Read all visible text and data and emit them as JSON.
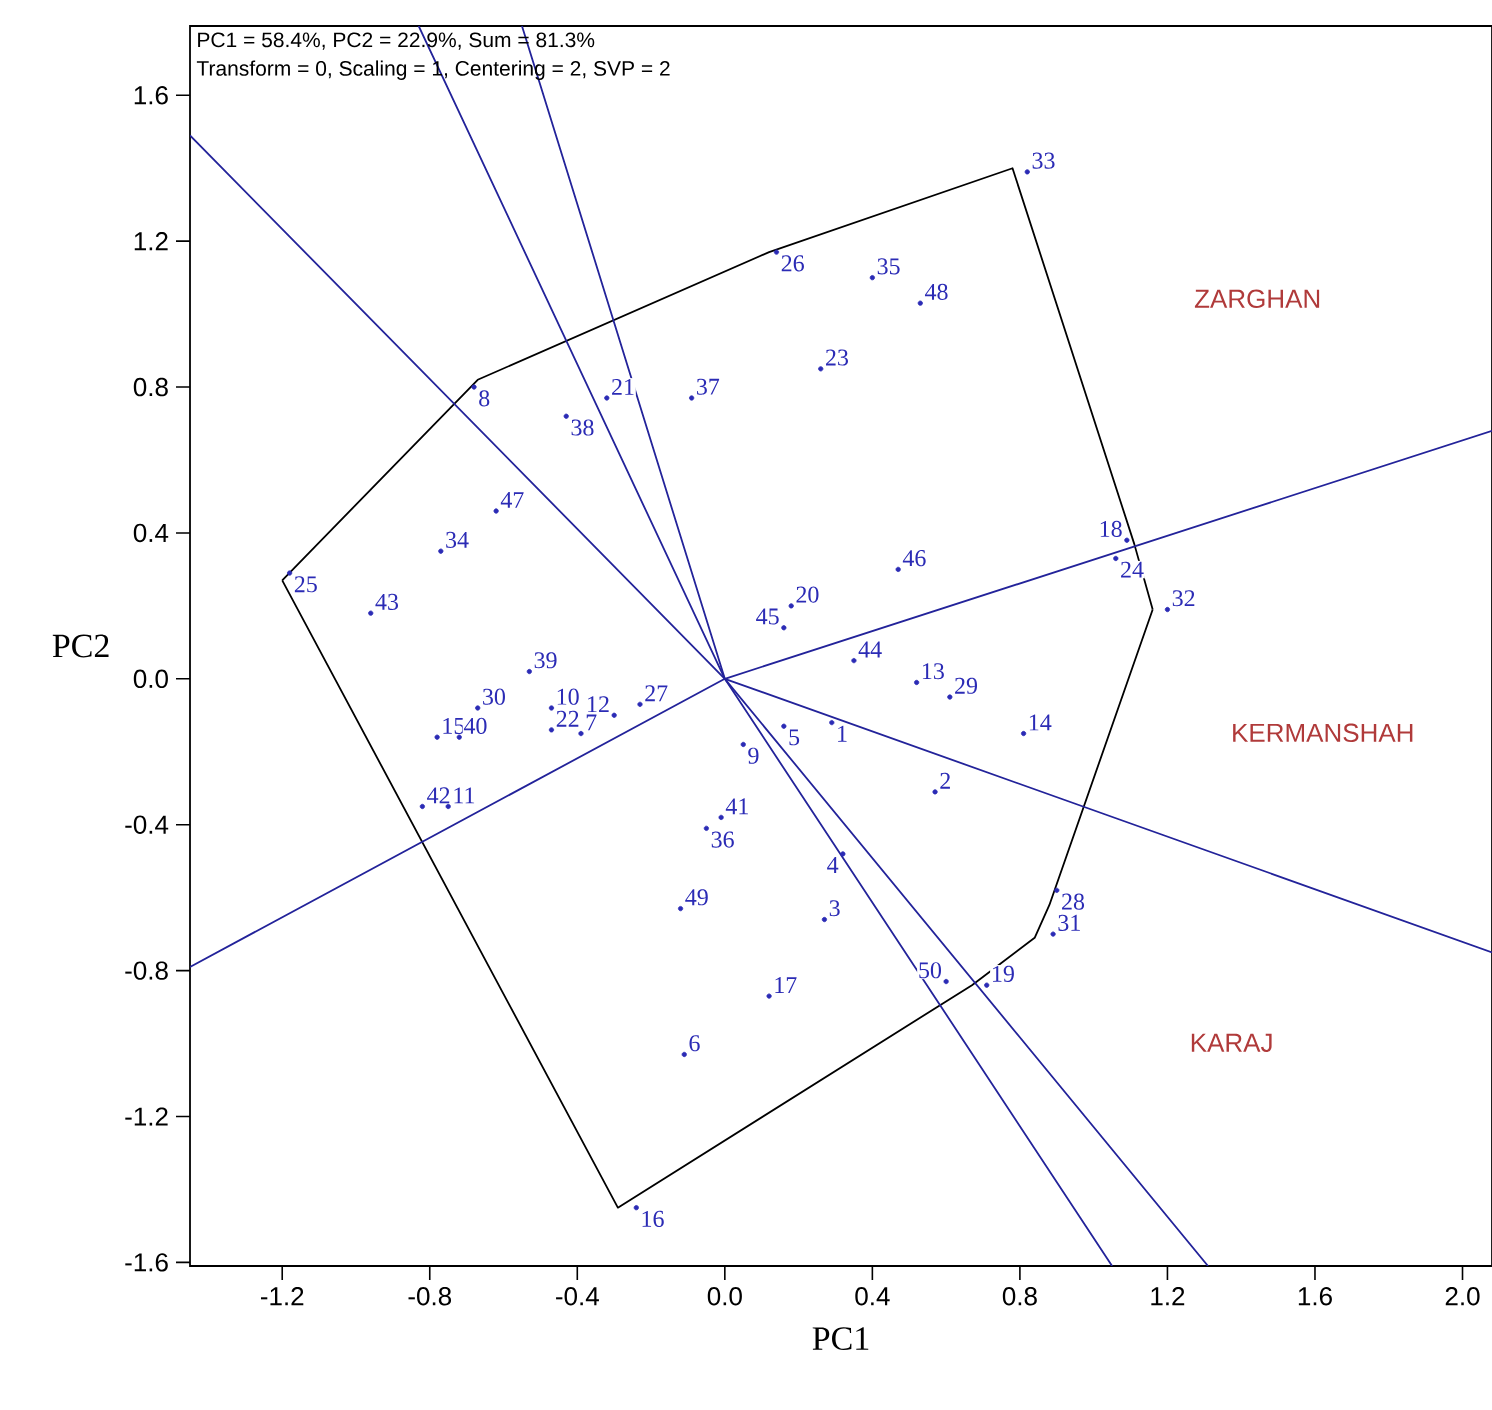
{
  "chart_data": {
    "type": "scatter",
    "marker": "circle",
    "xlabel": "PC1",
    "ylabel": "PC2",
    "xlim": [
      -1.45,
      2.08
    ],
    "ylim": [
      -1.61,
      1.79
    ],
    "xticks": [
      -1.2,
      -0.8,
      -0.4,
      {
        "value": 0,
        "label": "0.0"
      },
      0.4,
      0.8,
      1.2,
      1.6,
      {
        "value": 2,
        "label": "2.0"
      }
    ],
    "yticks": [
      -1.6,
      -1.2,
      -0.8,
      -0.4,
      {
        "value": 0,
        "label": "0.0"
      },
      0.4,
      0.8,
      1.2,
      1.6
    ],
    "grid": false,
    "annotations": [
      "PC1 = 58.4%, PC2 = 22.9%, Sum = 81.3%",
      "Transform = 0, Scaling = 1, Centering = 2, SVP = 2",
      "ZARGHAN",
      "KERMANSHAH",
      "KARAJ"
    ],
    "series": [
      {
        "name": "1",
        "color": "#2b2bb5",
        "x": [
          0.29
        ],
        "values": [
          -0.12
        ]
      },
      {
        "name": "2",
        "color": "#2b2bb5",
        "x": [
          0.57
        ],
        "values": [
          -0.31
        ]
      },
      {
        "name": "3",
        "color": "#2b2bb5",
        "x": [
          0.27
        ],
        "values": [
          -0.66
        ]
      },
      {
        "name": "4",
        "color": "#2b2bb5",
        "x": [
          0.32
        ],
        "values": [
          -0.48
        ]
      },
      {
        "name": "5",
        "color": "#2b2bb5",
        "x": [
          0.16
        ],
        "values": [
          -0.13
        ]
      },
      {
        "name": "6",
        "color": "#2b2bb5",
        "x": [
          -0.11
        ],
        "values": [
          -1.03
        ]
      },
      {
        "name": "7",
        "color": "#2b2bb5",
        "x": [
          -0.39
        ],
        "values": [
          -0.15
        ]
      },
      {
        "name": "8",
        "color": "#2b2bb5",
        "x": [
          -0.68
        ],
        "values": [
          0.8
        ]
      },
      {
        "name": "9",
        "color": "#2b2bb5",
        "x": [
          0.05
        ],
        "values": [
          -0.18
        ]
      },
      {
        "name": "10",
        "color": "#2b2bb5",
        "x": [
          -0.47
        ],
        "values": [
          -0.08
        ]
      },
      {
        "name": "11",
        "color": "#2b2bb5",
        "x": [
          -0.75
        ],
        "values": [
          -0.35
        ]
      },
      {
        "name": "12",
        "color": "#2b2bb5",
        "x": [
          -0.3
        ],
        "values": [
          -0.1
        ]
      },
      {
        "name": "13",
        "color": "#2b2bb5",
        "x": [
          0.52
        ],
        "values": [
          -0.01
        ]
      },
      {
        "name": "14",
        "color": "#2b2bb5",
        "x": [
          0.81
        ],
        "values": [
          -0.15
        ]
      },
      {
        "name": "15",
        "color": "#2b2bb5",
        "x": [
          -0.78
        ],
        "values": [
          -0.16
        ]
      },
      {
        "name": "16",
        "color": "#2b2bb5",
        "x": [
          -0.24
        ],
        "values": [
          -1.45
        ]
      },
      {
        "name": "17",
        "color": "#2b2bb5",
        "x": [
          0.12
        ],
        "values": [
          -0.87
        ]
      },
      {
        "name": "18",
        "color": "#2b2bb5",
        "x": [
          1.09
        ],
        "values": [
          0.38
        ]
      },
      {
        "name": "19",
        "color": "#2b2bb5",
        "x": [
          0.71
        ],
        "values": [
          -0.84
        ]
      },
      {
        "name": "20",
        "color": "#2b2bb5",
        "x": [
          0.18
        ],
        "values": [
          0.2
        ]
      },
      {
        "name": "21",
        "color": "#2b2bb5",
        "x": [
          -0.32
        ],
        "values": [
          0.77
        ]
      },
      {
        "name": "22",
        "color": "#2b2bb5",
        "x": [
          -0.47
        ],
        "values": [
          -0.14
        ]
      },
      {
        "name": "23",
        "color": "#2b2bb5",
        "x": [
          0.26
        ],
        "values": [
          0.85
        ]
      },
      {
        "name": "24",
        "color": "#2b2bb5",
        "x": [
          1.06
        ],
        "values": [
          0.33
        ]
      },
      {
        "name": "25",
        "color": "#2b2bb5",
        "x": [
          -1.18
        ],
        "values": [
          0.29
        ]
      },
      {
        "name": "26",
        "color": "#2b2bb5",
        "x": [
          0.14
        ],
        "values": [
          1.17
        ]
      },
      {
        "name": "27",
        "color": "#2b2bb5",
        "x": [
          -0.23
        ],
        "values": [
          -0.07
        ]
      },
      {
        "name": "28",
        "color": "#2b2bb5",
        "x": [
          0.9
        ],
        "values": [
          -0.58
        ]
      },
      {
        "name": "29",
        "color": "#2b2bb5",
        "x": [
          0.61
        ],
        "values": [
          -0.05
        ]
      },
      {
        "name": "30",
        "color": "#2b2bb5",
        "x": [
          -0.67
        ],
        "values": [
          -0.08
        ]
      },
      {
        "name": "31",
        "color": "#2b2bb5",
        "x": [
          0.89
        ],
        "values": [
          -0.7
        ]
      },
      {
        "name": "32",
        "color": "#2b2bb5",
        "x": [
          1.2
        ],
        "values": [
          0.19
        ]
      },
      {
        "name": "33",
        "color": "#2b2bb5",
        "x": [
          0.82
        ],
        "values": [
          1.39
        ]
      },
      {
        "name": "34",
        "color": "#2b2bb5",
        "x": [
          -0.77
        ],
        "values": [
          0.35
        ]
      },
      {
        "name": "35",
        "color": "#2b2bb5",
        "x": [
          0.4
        ],
        "values": [
          1.1
        ]
      },
      {
        "name": "36",
        "color": "#2b2bb5",
        "x": [
          -0.05
        ],
        "values": [
          -0.41
        ]
      },
      {
        "name": "37",
        "color": "#2b2bb5",
        "x": [
          -0.09
        ],
        "values": [
          0.77
        ]
      },
      {
        "name": "38",
        "color": "#2b2bb5",
        "x": [
          -0.43
        ],
        "values": [
          0.72
        ]
      },
      {
        "name": "39",
        "color": "#2b2bb5",
        "x": [
          -0.53
        ],
        "values": [
          0.02
        ]
      },
      {
        "name": "40",
        "color": "#2b2bb5",
        "x": [
          -0.72
        ],
        "values": [
          -0.16
        ]
      },
      {
        "name": "41",
        "color": "#2b2bb5",
        "x": [
          -0.01
        ],
        "values": [
          -0.38
        ]
      },
      {
        "name": "42",
        "color": "#2b2bb5",
        "x": [
          -0.82
        ],
        "values": [
          -0.35
        ]
      },
      {
        "name": "43",
        "color": "#2b2bb5",
        "x": [
          -0.96
        ],
        "values": [
          0.18
        ]
      },
      {
        "name": "44",
        "color": "#2b2bb5",
        "x": [
          0.35
        ],
        "values": [
          0.05
        ]
      },
      {
        "name": "45",
        "color": "#2b2bb5",
        "x": [
          0.16
        ],
        "values": [
          0.14
        ]
      },
      {
        "name": "46",
        "color": "#2b2bb5",
        "x": [
          0.47
        ],
        "values": [
          0.3
        ]
      },
      {
        "name": "47",
        "color": "#2b2bb5",
        "x": [
          -0.62
        ],
        "values": [
          0.46
        ]
      },
      {
        "name": "48",
        "color": "#2b2bb5",
        "x": [
          0.53
        ],
        "values": [
          1.03
        ]
      },
      {
        "name": "49",
        "color": "#2b2bb5",
        "x": [
          -0.12
        ],
        "values": [
          -0.63
        ]
      },
      {
        "name": "50",
        "color": "#2b2bb5",
        "x": [
          0.6
        ],
        "values": [
          -0.83
        ]
      },
      {
        "type": "line",
        "marker": "none",
        "color": "#000000",
        "x": [
          -1.2,
          -0.67,
          0.12,
          0.78,
          1.11,
          1.16
        ],
        "values": [
          0.27,
          0.82,
          1.17,
          1.4,
          0.37,
          0.19
        ]
      },
      {
        "type": "line",
        "marker": "none",
        "color": "#000000",
        "x": [
          -1.2,
          -0.29,
          0.67,
          0.84,
          0.88,
          1.16
        ],
        "values": [
          0.27,
          -1.45,
          -0.84,
          -0.71,
          -0.62,
          0.19
        ]
      },
      {
        "type": "line",
        "marker": "none",
        "color": "#23239a",
        "x": [
          -1.45,
          0,
          1.05
        ],
        "values": [
          1.49,
          0,
          -1.61
        ]
      },
      {
        "type": "line",
        "marker": "none",
        "color": "#23239a",
        "x": [
          -0.83,
          0,
          1.31
        ],
        "values": [
          1.79,
          0,
          -1.61
        ]
      },
      {
        "type": "line",
        "marker": "none",
        "color": "#23239a",
        "x": [
          -0.55,
          0,
          2.08
        ],
        "values": [
          1.79,
          0,
          -0.75
        ]
      },
      {
        "type": "line",
        "marker": "none",
        "color": "#23239a",
        "x": [
          -1.45,
          0,
          2.08
        ],
        "values": [
          -0.79,
          0,
          0.68
        ]
      }
    ]
  }
}
